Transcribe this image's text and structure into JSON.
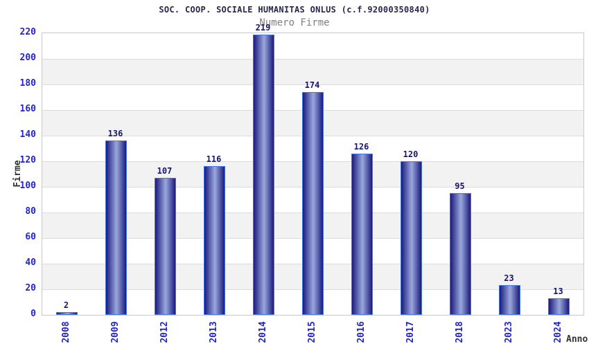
{
  "chart_data": {
    "type": "bar",
    "title": "SOC. COOP. SOCIALE HUMANITAS ONLUS (c.f.92000350840)",
    "subtitle": "Numero Firme",
    "xlabel": "Anno",
    "ylabel": "Firme",
    "categories": [
      "2008",
      "2009",
      "2012",
      "2013",
      "2014",
      "2015",
      "2016",
      "2017",
      "2018",
      "2023",
      "2024"
    ],
    "values": [
      2,
      136,
      107,
      116,
      219,
      174,
      126,
      120,
      95,
      23,
      13
    ],
    "ylim": [
      0,
      220
    ],
    "ytick_step": 20,
    "grid": "alternating-horizontal-bands",
    "legend_position": "none",
    "colors": {
      "title": "#26264f",
      "subtitle": "#7f7f7f",
      "tick_label": "#2323cf",
      "value_label": "#15156e",
      "axis_title": "#333333",
      "bar_dark": "#1b1b7e",
      "bar_light": "#9aa8dc",
      "bar_border": "#4477e8",
      "band_white": "#ffffff",
      "band_gray": "#f2f2f2",
      "grid_line": "#dcdcdc",
      "frame": "#c9c9c9"
    }
  }
}
